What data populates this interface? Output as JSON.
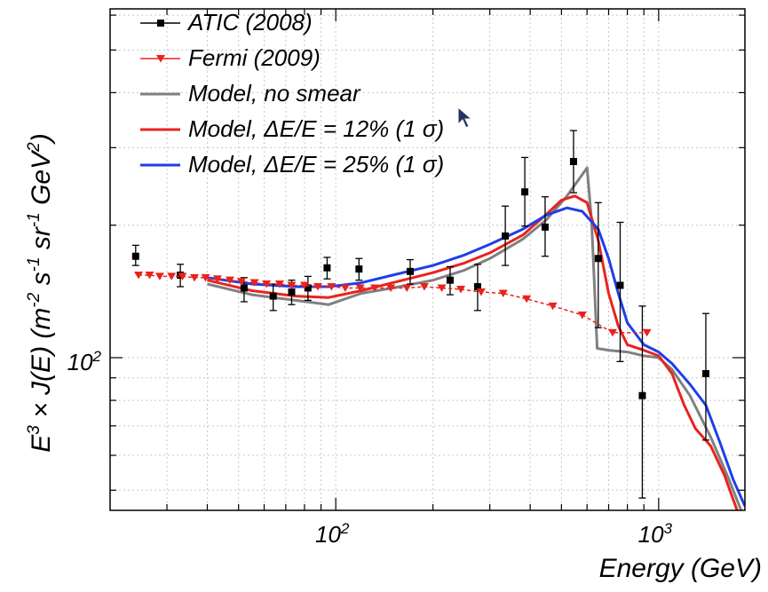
{
  "chart_data": {
    "type": "line",
    "title": "",
    "xlabel": "Energy (GeV)",
    "ylabel": "E3 × J(E) (m-2 s-1 sr-1 GeV2)",
    "x_scale": "log",
    "y_scale": "log",
    "xlim": [
      20,
      1850
    ],
    "ylim": [
      45,
      620
    ],
    "grid": true,
    "legend_placement": "top-left",
    "x_ticks": [
      {
        "value": 100,
        "base": "10",
        "exp": "2"
      },
      {
        "value": 1000,
        "base": "10",
        "exp": "3"
      }
    ],
    "y_ticks": [
      {
        "value": 100,
        "base": "10",
        "exp": "2"
      }
    ],
    "series": [
      {
        "name": "ATIC (2008)",
        "kind": "points",
        "color": "#000000",
        "marker": "square",
        "points": [
          {
            "x": 24,
            "y": 170,
            "lo": 162,
            "hi": 180
          },
          {
            "x": 33,
            "y": 154,
            "lo": 145,
            "hi": 163
          },
          {
            "x": 52,
            "y": 144,
            "lo": 134,
            "hi": 152
          },
          {
            "x": 64,
            "y": 138,
            "lo": 128,
            "hi": 147
          },
          {
            "x": 73,
            "y": 141,
            "lo": 132,
            "hi": 150
          },
          {
            "x": 82,
            "y": 144,
            "lo": 135,
            "hi": 153
          },
          {
            "x": 94,
            "y": 160,
            "lo": 151,
            "hi": 169
          },
          {
            "x": 118,
            "y": 159,
            "lo": 150,
            "hi": 168
          },
          {
            "x": 170,
            "y": 157,
            "lo": 147,
            "hi": 167
          },
          {
            "x": 226,
            "y": 150,
            "lo": 139,
            "hi": 161
          },
          {
            "x": 275,
            "y": 145,
            "lo": 128,
            "hi": 163
          },
          {
            "x": 335,
            "y": 189,
            "lo": 162,
            "hi": 221
          },
          {
            "x": 385,
            "y": 238,
            "lo": 199,
            "hi": 285
          },
          {
            "x": 445,
            "y": 198,
            "lo": 170,
            "hi": 232
          },
          {
            "x": 545,
            "y": 279,
            "lo": 237,
            "hi": 328
          },
          {
            "x": 650,
            "y": 168,
            "lo": 117,
            "hi": 225
          },
          {
            "x": 760,
            "y": 146,
            "lo": 98,
            "hi": 203
          },
          {
            "x": 890,
            "y": 82,
            "lo": 48,
            "hi": 131
          },
          {
            "x": 1400,
            "y": 92,
            "lo": 65,
            "hi": 126
          }
        ]
      },
      {
        "name": "Fermi (2009)",
        "kind": "points",
        "color": "#e8231d",
        "marker": "triangle-down",
        "points": [
          {
            "x": 24.5,
            "y": 154
          },
          {
            "x": 26.5,
            "y": 154
          },
          {
            "x": 28.5,
            "y": 153
          },
          {
            "x": 31,
            "y": 153
          },
          {
            "x": 33.5,
            "y": 153
          },
          {
            "x": 36.5,
            "y": 152
          },
          {
            "x": 39.5,
            "y": 152
          },
          {
            "x": 43,
            "y": 151
          },
          {
            "x": 47,
            "y": 150
          },
          {
            "x": 51,
            "y": 149
          },
          {
            "x": 56,
            "y": 148
          },
          {
            "x": 61,
            "y": 147
          },
          {
            "x": 67,
            "y": 147
          },
          {
            "x": 73,
            "y": 146
          },
          {
            "x": 80,
            "y": 146
          },
          {
            "x": 88,
            "y": 145
          },
          {
            "x": 97,
            "y": 145
          },
          {
            "x": 107,
            "y": 144
          },
          {
            "x": 119,
            "y": 144
          },
          {
            "x": 132,
            "y": 144
          },
          {
            "x": 148,
            "y": 144
          },
          {
            "x": 166,
            "y": 144
          },
          {
            "x": 188,
            "y": 145
          },
          {
            "x": 213,
            "y": 144
          },
          {
            "x": 244,
            "y": 143
          },
          {
            "x": 282,
            "y": 141
          },
          {
            "x": 330,
            "y": 140
          },
          {
            "x": 390,
            "y": 136
          },
          {
            "x": 470,
            "y": 131
          },
          {
            "x": 580,
            "y": 125
          },
          {
            "x": 720,
            "y": 114
          },
          {
            "x": 920,
            "y": 114
          }
        ]
      },
      {
        "name": "Model, no smear",
        "kind": "line",
        "color": "#808080",
        "points": [
          [
            40,
            147
          ],
          [
            55,
            139
          ],
          [
            75,
            135
          ],
          [
            95,
            132
          ],
          [
            120,
            140
          ],
          [
            150,
            144
          ],
          [
            200,
            150
          ],
          [
            250,
            158
          ],
          [
            300,
            168
          ],
          [
            380,
            186
          ],
          [
            450,
            206
          ],
          [
            520,
            233
          ],
          [
            600,
            270
          ],
          [
            620,
            205
          ],
          [
            645,
            105
          ],
          [
            700,
            104
          ],
          [
            800,
            103
          ],
          [
            900,
            101
          ],
          [
            1000,
            100
          ],
          [
            1100,
            94
          ],
          [
            1250,
            82
          ],
          [
            1450,
            66
          ],
          [
            1650,
            53
          ],
          [
            1800,
            45
          ]
        ]
      },
      {
        "name": "Model, ΔE/E = 12% (1 σ)",
        "kind": "line",
        "color": "#e8231d",
        "points": [
          [
            40,
            150
          ],
          [
            55,
            142
          ],
          [
            75,
            138
          ],
          [
            95,
            137
          ],
          [
            120,
            142
          ],
          [
            150,
            148
          ],
          [
            200,
            156
          ],
          [
            250,
            164
          ],
          [
            300,
            173
          ],
          [
            380,
            190
          ],
          [
            450,
            212
          ],
          [
            500,
            228
          ],
          [
            550,
            233
          ],
          [
            600,
            225
          ],
          [
            650,
            185
          ],
          [
            700,
            140
          ],
          [
            750,
            118
          ],
          [
            800,
            107
          ],
          [
            900,
            104
          ],
          [
            1000,
            101
          ],
          [
            1100,
            92
          ],
          [
            1200,
            78
          ],
          [
            1300,
            69
          ],
          [
            1450,
            63
          ],
          [
            1600,
            54
          ],
          [
            1750,
            45
          ]
        ]
      },
      {
        "name": "Model, ΔE/E = 25% (1 σ)",
        "kind": "line",
        "color": "#1f3fe6",
        "points": [
          [
            40,
            152
          ],
          [
            55,
            147
          ],
          [
            75,
            145
          ],
          [
            95,
            145
          ],
          [
            120,
            148
          ],
          [
            150,
            154
          ],
          [
            200,
            162
          ],
          [
            250,
            171
          ],
          [
            300,
            181
          ],
          [
            380,
            196
          ],
          [
            450,
            211
          ],
          [
            520,
            219
          ],
          [
            580,
            215
          ],
          [
            650,
            196
          ],
          [
            700,
            168
          ],
          [
            750,
            140
          ],
          [
            800,
            120
          ],
          [
            900,
            107
          ],
          [
            1000,
            103
          ],
          [
            1100,
            97
          ],
          [
            1250,
            87
          ],
          [
            1400,
            78
          ],
          [
            1550,
            64
          ],
          [
            1700,
            53
          ],
          [
            1850,
            46
          ]
        ]
      }
    ],
    "legend": [
      {
        "label": "ATIC (2008)",
        "style": "points-square",
        "color": "#000000"
      },
      {
        "label": "Fermi (2009)",
        "style": "points-triangle",
        "color": "#e8231d"
      },
      {
        "label": "Model, no smear",
        "style": "line",
        "color": "#808080"
      },
      {
        "label": "Model, ΔE/E = 12% (1 σ)",
        "style": "line",
        "color": "#e8231d"
      },
      {
        "label": "Model, ΔE/E = 25% (1 σ)",
        "style": "line",
        "color": "#1f3fe6"
      }
    ]
  },
  "cursor": {
    "icon": "mouse-pointer-icon",
    "color": "#23345e"
  }
}
